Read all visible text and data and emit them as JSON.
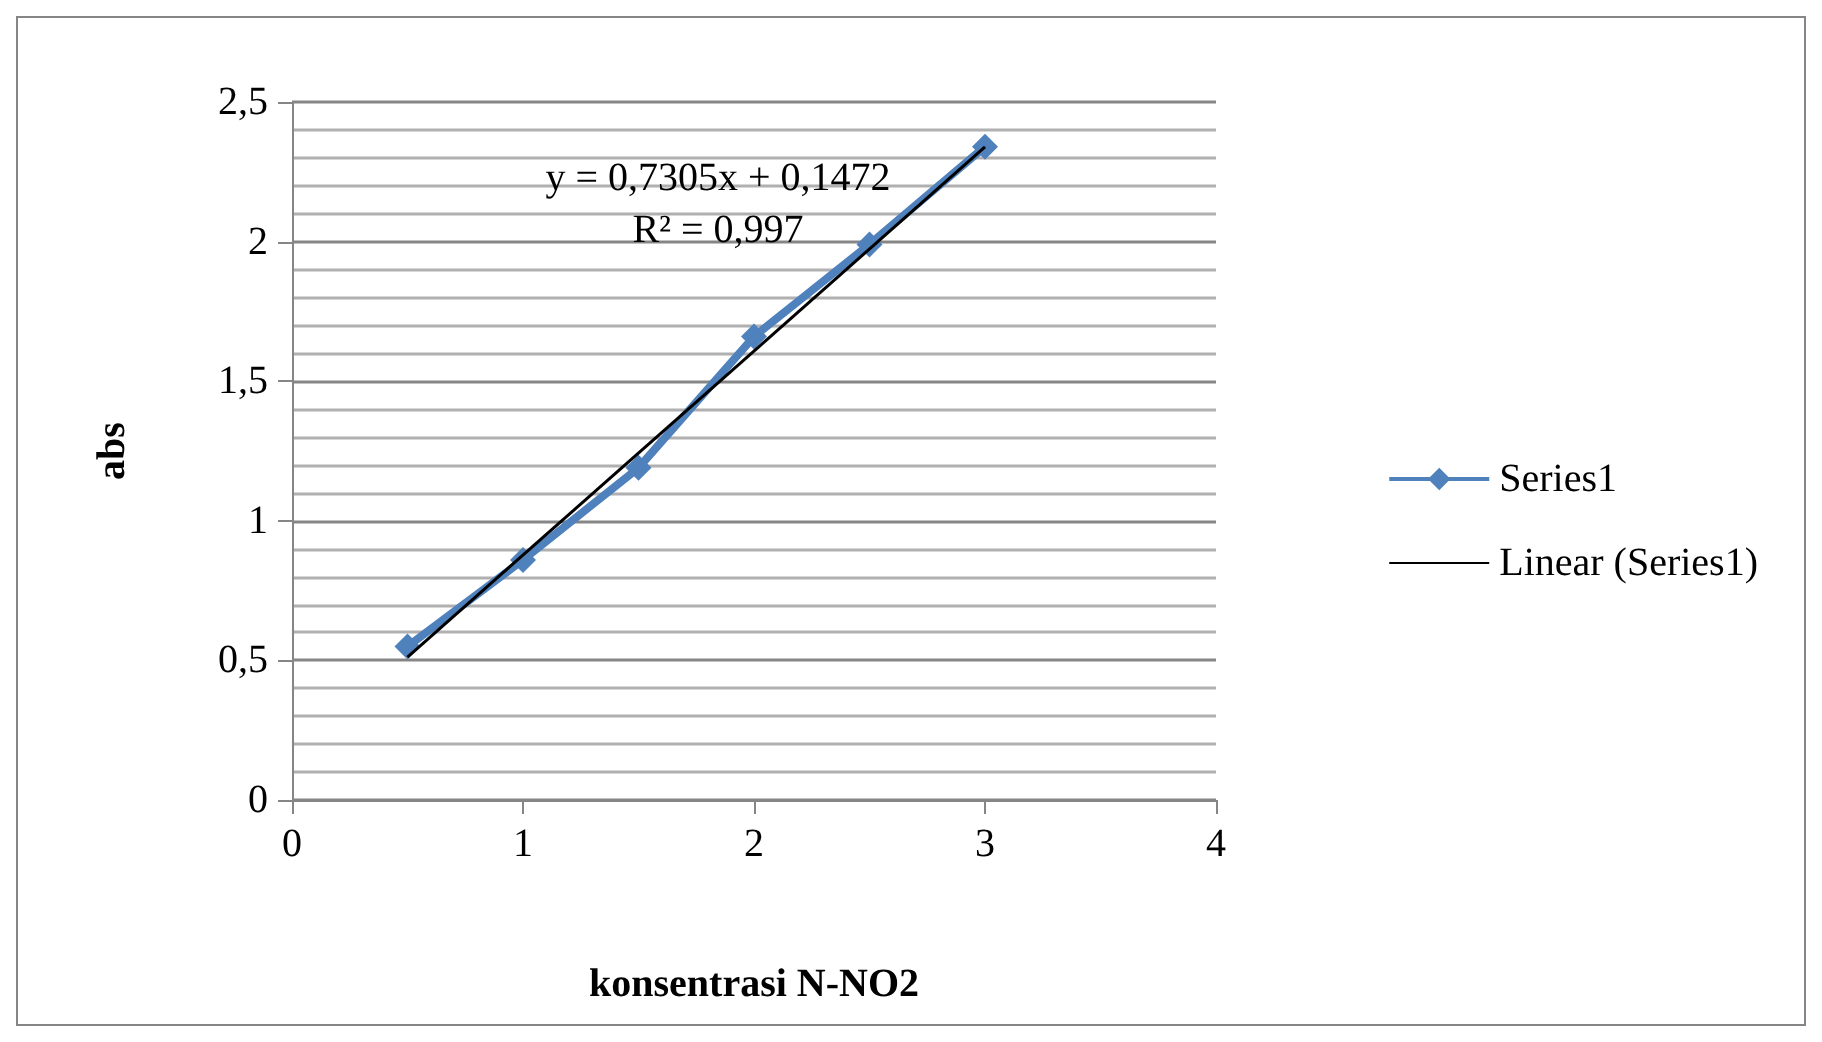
{
  "chart_data": {
    "type": "line",
    "xlabel": "konsentrasi N-NO2",
    "ylabel": "abs",
    "x": [
      0.5,
      1,
      1.5,
      2,
      2.5,
      3
    ],
    "series": [
      {
        "name": "Series1",
        "color": "#4f81bd",
        "values": [
          0.55,
          0.86,
          1.19,
          1.66,
          1.99,
          2.34
        ],
        "marker": "diamond"
      },
      {
        "name": "Linear (Series1)",
        "color": "#000000",
        "type": "line",
        "x": [
          0.5,
          3
        ],
        "values": [
          0.512,
          2.339
        ],
        "marker": "none"
      }
    ],
    "xlim": [
      0,
      4
    ],
    "xticks": [
      0,
      1,
      2,
      3,
      4
    ],
    "ylim": [
      0,
      2.5
    ],
    "yticks": [
      0,
      {
        "value": 0.5,
        "label": "0,5"
      },
      1,
      {
        "value": 1.5,
        "label": "1,5"
      },
      2,
      {
        "value": 2.5,
        "label": "2,5"
      }
    ],
    "grid": "y",
    "legend": "right",
    "annotations": [
      "y = 0,7305x + 0,1472",
      "R² = 0,997"
    ]
  }
}
